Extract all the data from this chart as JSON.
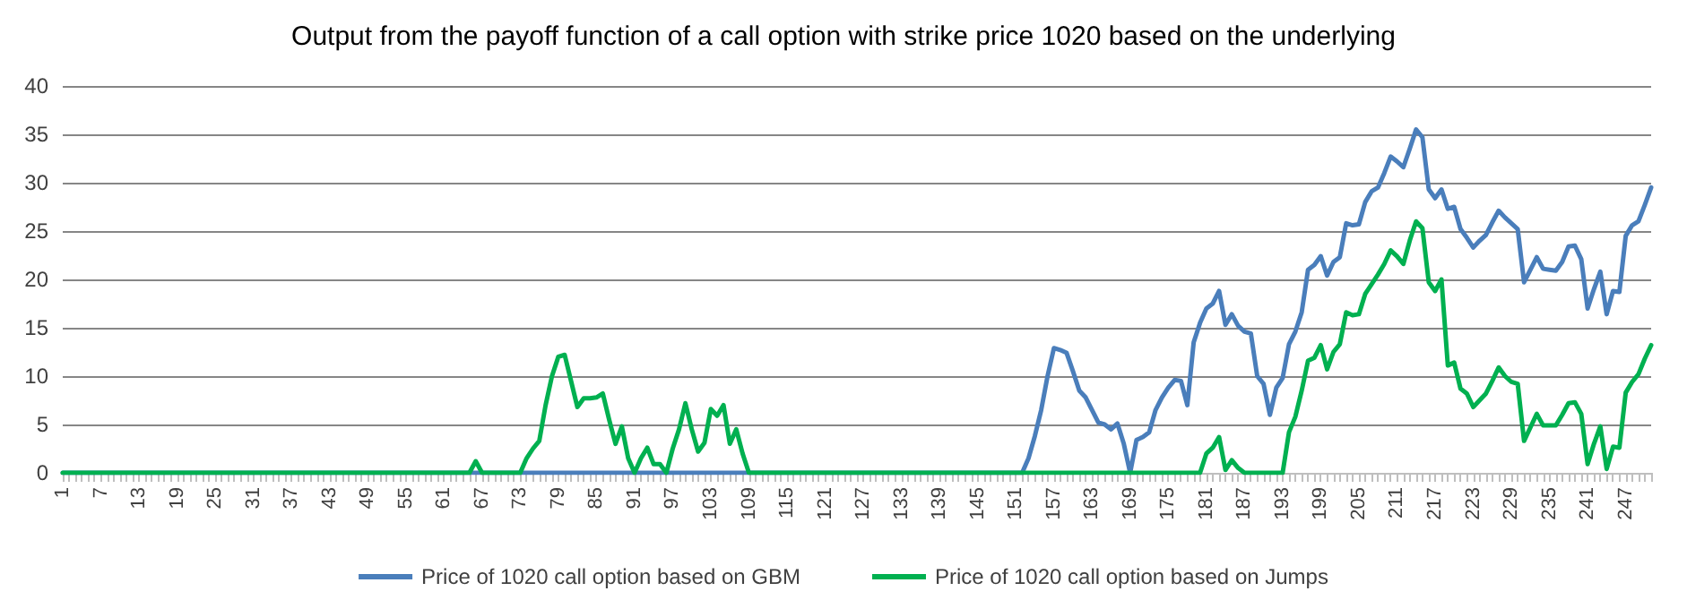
{
  "chart_data": {
    "type": "line",
    "title": "Output from the payoff function of a call option with strike price 1020 based on the underlying",
    "categories": [
      "1",
      null,
      null,
      null,
      null,
      null,
      "7",
      null,
      null,
      null,
      null,
      null,
      "13",
      null,
      null,
      null,
      null,
      null,
      "19",
      null,
      null,
      null,
      null,
      null,
      "25",
      null,
      null,
      null,
      null,
      null,
      "31",
      null,
      null,
      null,
      null,
      null,
      "37",
      null,
      null,
      null,
      null,
      null,
      "43",
      null,
      null,
      null,
      null,
      null,
      "49",
      null,
      null,
      null,
      null,
      null,
      "55",
      null,
      null,
      null,
      null,
      null,
      "61",
      null,
      null,
      null,
      null,
      null,
      "67",
      null,
      null,
      null,
      null,
      null,
      "73",
      null,
      null,
      null,
      null,
      null,
      "79",
      null,
      null,
      null,
      null,
      null,
      "85",
      null,
      null,
      null,
      null,
      null,
      "91",
      null,
      null,
      null,
      null,
      null,
      "97",
      null,
      null,
      null,
      null,
      null,
      "103",
      null,
      null,
      null,
      null,
      null,
      "109",
      null,
      null,
      null,
      null,
      null,
      "115",
      null,
      null,
      null,
      null,
      null,
      "121",
      null,
      null,
      null,
      null,
      null,
      "127",
      null,
      null,
      null,
      null,
      null,
      "133",
      null,
      null,
      null,
      null,
      null,
      "139",
      null,
      null,
      null,
      null,
      null,
      "145",
      null,
      null,
      null,
      null,
      null,
      "151",
      null,
      null,
      null,
      null,
      null,
      "157",
      null,
      null,
      null,
      null,
      null,
      "163",
      null,
      null,
      null,
      null,
      null,
      "169",
      null,
      null,
      null,
      null,
      null,
      "175",
      null,
      null,
      null,
      null,
      null,
      "181",
      null,
      null,
      null,
      null,
      null,
      "187",
      null,
      null,
      null,
      null,
      null,
      "193",
      null,
      null,
      null,
      null,
      null,
      "199",
      null,
      null,
      null,
      null,
      null,
      "205",
      null,
      null,
      null,
      null,
      null,
      "211",
      null,
      null,
      null,
      null,
      null,
      "217",
      null,
      null,
      null,
      null,
      null,
      "223",
      null,
      null,
      null,
      null,
      null,
      "229",
      null,
      null,
      null,
      null,
      null,
      "235",
      null,
      null,
      null,
      null,
      null,
      "241",
      null,
      null,
      null,
      null,
      null,
      "247",
      null,
      null,
      null,
      null
    ],
    "series": [
      {
        "name": "Price of 1020 call option based on GBM",
        "color": "#4a7ebb",
        "values": [
          0,
          0,
          0,
          0,
          0,
          0,
          0,
          0,
          0,
          0,
          0,
          0,
          0,
          0,
          0,
          0,
          0,
          0,
          0,
          0,
          0,
          0,
          0,
          0,
          0,
          0,
          0,
          0,
          0,
          0,
          0,
          0,
          0,
          0,
          0,
          0,
          0,
          0,
          0,
          0,
          0,
          0,
          0,
          0,
          0,
          0,
          0,
          0,
          0,
          0,
          0,
          0,
          0,
          0,
          0,
          0,
          0,
          0,
          0,
          0,
          0,
          0,
          0,
          0,
          0,
          0,
          0,
          0,
          0,
          0,
          0,
          0,
          0,
          0,
          0,
          0,
          0,
          0,
          0,
          0,
          0,
          0,
          0,
          0,
          0,
          0,
          0,
          0,
          0,
          0,
          0,
          0,
          0,
          0,
          0,
          0,
          0,
          0,
          0,
          0,
          0,
          0,
          0,
          0,
          0,
          0,
          0,
          0,
          0,
          0,
          0,
          0,
          0,
          0,
          0,
          0,
          0,
          0,
          0,
          0,
          0,
          0,
          0,
          0,
          0,
          0,
          0,
          0,
          0,
          0,
          0,
          0,
          0,
          0,
          0,
          0,
          0,
          0,
          0,
          0,
          0,
          0,
          0,
          0,
          0,
          0,
          0,
          0,
          0,
          0,
          0,
          0,
          1.5,
          3.8,
          6.5,
          10,
          12.9,
          12.7,
          12.4,
          10.5,
          8.5,
          7.8,
          6.5,
          5.2,
          5.0,
          4.5,
          5.1,
          3,
          0,
          3.4,
          3.7,
          4.2,
          6.5,
          7.8,
          8.8,
          9.6,
          9.5,
          7,
          13.5,
          15.5,
          17,
          17.5,
          18.8,
          15.3,
          16.4,
          15.2,
          14.6,
          14.4,
          10,
          9.2,
          6,
          8.8,
          9.8,
          13.3,
          14.6,
          16.6,
          21,
          21.5,
          22.4,
          20.4,
          21.8,
          22.3,
          25.8,
          25.6,
          25.7,
          28,
          29.1,
          29.5,
          31,
          32.7,
          32.2,
          31.6,
          33.5,
          35.5,
          34.7,
          29.3,
          28.4,
          29.3,
          27.3,
          27.5,
          25.2,
          24.3,
          23.3,
          24,
          24.6,
          25.9,
          27.1,
          26.4,
          25.8,
          25.2,
          19.7,
          21,
          22.3,
          21.1,
          21,
          20.9,
          21.8,
          23.4,
          23.5,
          22.1,
          17,
          19,
          20.8,
          16.4,
          18.8,
          18.7,
          24.5,
          25.6,
          26,
          27.7,
          29.5
        ]
      },
      {
        "name": "Price of 1020 call option based on Jumps",
        "color": "#00b050",
        "values": [
          0,
          0,
          0,
          0,
          0,
          0,
          0,
          0,
          0,
          0,
          0,
          0,
          0,
          0,
          0,
          0,
          0,
          0,
          0,
          0,
          0,
          0,
          0,
          0,
          0,
          0,
          0,
          0,
          0,
          0,
          0,
          0,
          0,
          0,
          0,
          0,
          0,
          0,
          0,
          0,
          0,
          0,
          0,
          0,
          0,
          0,
          0,
          0,
          0,
          0,
          0,
          0,
          0,
          0,
          0,
          0,
          0,
          0,
          0,
          0,
          0,
          0,
          0,
          0,
          0,
          1.2,
          0,
          0,
          0,
          0,
          0,
          0,
          0,
          1.5,
          2.5,
          3.3,
          7,
          10,
          12,
          12.2,
          9.5,
          6.8,
          7.7,
          7.7,
          7.8,
          8.2,
          5.5,
          3,
          4.8,
          1.5,
          0,
          1.5,
          2.6,
          0.9,
          0.9,
          0,
          2.5,
          4.5,
          7.2,
          4.5,
          2.2,
          3.1,
          6.6,
          5.9,
          7,
          3,
          4.5,
          2,
          0,
          0,
          0,
          0,
          0,
          0,
          0,
          0,
          0,
          0,
          0,
          0,
          0,
          0,
          0,
          0,
          0,
          0,
          0,
          0,
          0,
          0,
          0,
          0,
          0,
          0,
          0,
          0,
          0,
          0,
          0,
          0,
          0,
          0,
          0,
          0,
          0,
          0,
          0,
          0,
          0,
          0,
          0,
          0,
          0,
          0,
          0,
          0,
          0,
          0,
          0,
          0,
          0,
          0,
          0,
          0,
          0,
          0,
          0,
          0,
          0,
          0,
          0,
          0,
          0,
          0,
          0,
          0,
          0,
          0,
          0,
          0,
          2,
          2.6,
          3.7,
          0.3,
          1.3,
          0.5,
          0,
          0,
          0,
          0,
          0,
          0,
          0,
          4.2,
          5.8,
          8.5,
          11.6,
          11.9,
          13.2,
          10.7,
          12.5,
          13.3,
          16.6,
          16.3,
          16.4,
          18.5,
          19.5,
          20.5,
          21.6,
          23,
          22.4,
          21.6,
          24,
          26,
          25.3,
          19.7,
          18.8,
          20,
          11.1,
          11.4,
          8.7,
          8.2,
          6.8,
          7.5,
          8.2,
          9.5,
          10.9,
          10,
          9.4,
          9.2,
          3.3,
          4.7,
          6.1,
          4.9,
          4.9,
          4.9,
          6,
          7.2,
          7.3,
          6.1,
          0.9,
          3,
          4.8,
          0.4,
          2.7,
          2.6,
          8.3,
          9.4,
          10.2,
          11.8,
          13.2
        ]
      }
    ],
    "ylim": [
      0,
      40
    ],
    "yticks": [
      0,
      5,
      10,
      15,
      20,
      25,
      30,
      35,
      40
    ],
    "grid": "y",
    "legend": "bottom",
    "marker": "none",
    "line_style": "solid"
  }
}
